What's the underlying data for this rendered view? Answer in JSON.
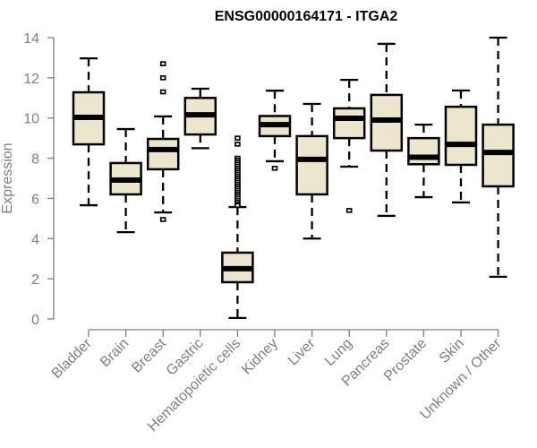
{
  "chart_data": {
    "type": "boxplot",
    "title": "ENSG00000164171 - ITGA2",
    "xlabel": "",
    "ylabel": "Expression",
    "ylim": [
      0,
      14
    ],
    "yticks": [
      0,
      2,
      4,
      6,
      8,
      10,
      12,
      14
    ],
    "grid": false,
    "legend": "none",
    "colors": {
      "box_fill": "#ece6cd",
      "box_stroke": "#000000",
      "axis": "#7f7f7f",
      "title": "#000000"
    },
    "categories": [
      "Bladder",
      "Brain",
      "Breast",
      "Gastric",
      "Hematopoietic cells",
      "Kidney",
      "Liver",
      "Lung",
      "Pancreas",
      "Prostate",
      "Skin",
      "Unknown / Other"
    ],
    "series": [
      {
        "name": "Bladder",
        "whisker_low": 5.66,
        "q1": 8.69,
        "median": 10.03,
        "q3": 11.28,
        "whisker_high": 12.97,
        "outliers": []
      },
      {
        "name": "Brain",
        "whisker_low": 4.32,
        "q1": 6.2,
        "median": 6.91,
        "q3": 7.76,
        "whisker_high": 9.45,
        "outliers": []
      },
      {
        "name": "Breast",
        "whisker_low": 5.3,
        "q1": 7.45,
        "median": 8.43,
        "q3": 8.96,
        "whisker_high": 10.08,
        "outliers": [
          12.7,
          12.0,
          11.3,
          4.95
        ]
      },
      {
        "name": "Gastric",
        "whisker_low": 8.5,
        "q1": 9.18,
        "median": 10.16,
        "q3": 11.0,
        "whisker_high": 11.46,
        "outliers": []
      },
      {
        "name": "Hematopoietic cells",
        "whisker_low": 0.05,
        "q1": 1.83,
        "median": 2.5,
        "q3": 3.3,
        "whisker_high": 5.57,
        "outliers": [
          9.0,
          8.7,
          8.0,
          7.9,
          7.8,
          7.7,
          7.6,
          7.5,
          7.4,
          7.3,
          7.2,
          7.1,
          7.0,
          6.9,
          6.8,
          6.7,
          6.6,
          6.5,
          6.4,
          6.3,
          6.2,
          6.1,
          6.0,
          5.9,
          5.8,
          5.7,
          5.65
        ]
      },
      {
        "name": "Kidney",
        "whisker_low": 7.85,
        "q1": 9.1,
        "median": 9.67,
        "q3": 10.1,
        "whisker_high": 11.36,
        "outliers": [
          7.5
        ]
      },
      {
        "name": "Liver",
        "whisker_low": 4.0,
        "q1": 6.2,
        "median": 7.94,
        "q3": 9.1,
        "whisker_high": 10.7,
        "outliers": []
      },
      {
        "name": "Lung",
        "whisker_low": 7.58,
        "q1": 9.0,
        "median": 9.99,
        "q3": 10.48,
        "whisker_high": 11.9,
        "outliers": [
          5.4
        ]
      },
      {
        "name": "Pancreas",
        "whisker_low": 5.13,
        "q1": 8.38,
        "median": 9.9,
        "q3": 11.15,
        "whisker_high": 13.69,
        "outliers": []
      },
      {
        "name": "Prostate",
        "whisker_low": 6.06,
        "q1": 7.7,
        "median": 8.05,
        "q3": 9.0,
        "whisker_high": 9.67,
        "outliers": []
      },
      {
        "name": "Skin",
        "whisker_low": 5.8,
        "q1": 7.67,
        "median": 8.69,
        "q3": 10.56,
        "whisker_high": 11.37,
        "outliers": []
      },
      {
        "name": "Unknown / Other",
        "whisker_low": 2.1,
        "q1": 6.6,
        "median": 8.29,
        "q3": 9.67,
        "whisker_high": 14.0,
        "outliers": []
      }
    ]
  }
}
